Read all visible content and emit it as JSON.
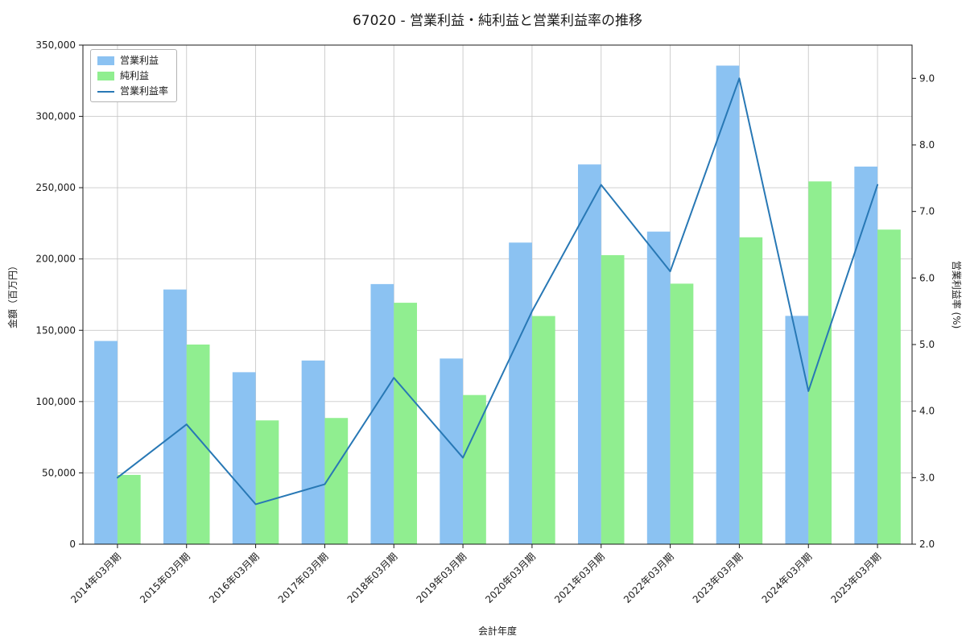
{
  "title": "67020 - 営業利益・純利益と営業利益率の推移",
  "chart_data": {
    "type": "bar",
    "categories": [
      "2014年03月期",
      "2015年03月期",
      "2016年03月期",
      "2017年03月期",
      "2018年03月期",
      "2019年03月期",
      "2020年03月期",
      "2021年03月期",
      "2022年03月期",
      "2023年03月期",
      "2024年03月期",
      "2025年03月期"
    ],
    "series": [
      {
        "name": "営業利益",
        "kind": "bar",
        "axis": "left",
        "color": "#8bc2f2",
        "values": [
          142500,
          178600,
          120600,
          128800,
          182400,
          130200,
          211500,
          266300,
          219200,
          335600,
          160100,
          264800
        ]
      },
      {
        "name": "純利益",
        "kind": "bar",
        "axis": "left",
        "color": "#90ee90",
        "values": [
          48600,
          140000,
          86800,
          88500,
          169300,
          104600,
          160000,
          202700,
          182700,
          215200,
          254400,
          220600
        ]
      },
      {
        "name": "営業利益率",
        "kind": "line",
        "axis": "right",
        "color": "#2878b5",
        "values": [
          3.0,
          3.8,
          2.6,
          2.9,
          4.5,
          3.3,
          5.5,
          7.4,
          6.1,
          9.0,
          4.3,
          7.4
        ]
      }
    ],
    "xlabel": "会計年度",
    "ylabel_left": "金額（百万円）",
    "ylabel_right": "営業利益率 (%)",
    "ylim_left": [
      0,
      350000
    ],
    "yticks_left": [
      0,
      50000,
      100000,
      150000,
      200000,
      250000,
      300000,
      350000
    ],
    "ylim_right": [
      2.0,
      9.5
    ],
    "yticks_right": [
      2.0,
      3.0,
      4.0,
      5.0,
      6.0,
      7.0,
      8.0,
      9.0
    ],
    "grid": true,
    "legend_position": "upper left"
  }
}
